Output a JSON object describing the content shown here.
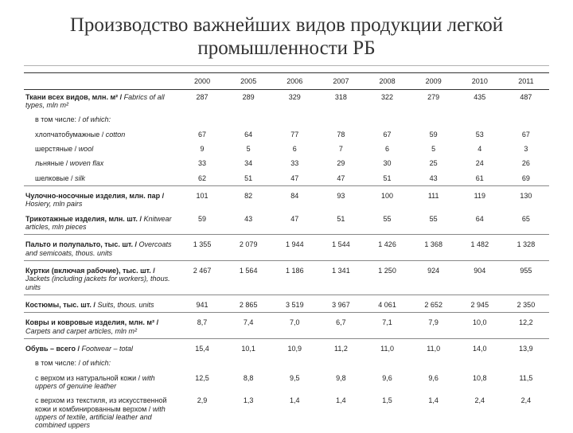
{
  "title": "Производство важнейших видов продукции легкой промышленности РБ",
  "years": [
    "2000",
    "2005",
    "2006",
    "2007",
    "2008",
    "2009",
    "2010",
    "2011"
  ],
  "rows": [
    {
      "kind": "section",
      "ru": "Ткани всех видов, млн. м²",
      "en": "Fabrics of all types, mln m²",
      "vals": [
        "287",
        "289",
        "329",
        "318",
        "322",
        "279",
        "435",
        "487"
      ]
    },
    {
      "kind": "sub-hdr",
      "ru": "в том числе:",
      "en": "of which:"
    },
    {
      "kind": "sub",
      "ru": "хлопчатобумажные",
      "en": "cotton",
      "vals": [
        "67",
        "64",
        "77",
        "78",
        "67",
        "59",
        "53",
        "67"
      ]
    },
    {
      "kind": "sub",
      "ru": "шерстяные",
      "en": "wool",
      "vals": [
        "9",
        "5",
        "6",
        "7",
        "6",
        "5",
        "4",
        "3"
      ]
    },
    {
      "kind": "sub",
      "ru": "льняные",
      "en": "woven flax",
      "vals": [
        "33",
        "34",
        "33",
        "29",
        "30",
        "25",
        "24",
        "26"
      ]
    },
    {
      "kind": "sub",
      "ru": "шелковые",
      "en": "silk",
      "vals": [
        "62",
        "51",
        "47",
        "47",
        "51",
        "43",
        "61",
        "69"
      ]
    },
    {
      "kind": "section",
      "divider": true,
      "ru": "Чулочно-носочные изделия, млн. пар",
      "en": "Hosiery, mln pairs",
      "vals": [
        "101",
        "82",
        "84",
        "93",
        "100",
        "111",
        "119",
        "130"
      ]
    },
    {
      "kind": "section",
      "ru": "Трикотажные изделия, млн. шт.",
      "en": "Knitwear articles, mln pieces",
      "vals": [
        "59",
        "43",
        "47",
        "51",
        "55",
        "55",
        "64",
        "65"
      ]
    },
    {
      "kind": "section",
      "divider": true,
      "ru": "Пальто и полупальто, тыс. шт.",
      "en": "Overcoats and semicoats, thous. units",
      "vals": [
        "1 355",
        "2 079",
        "1 944",
        "1 544",
        "1 426",
        "1 368",
        "1 482",
        "1 328"
      ]
    },
    {
      "kind": "section",
      "divider": true,
      "ru": "Куртки (включая рабочие), тыс. шт.",
      "en": "Jackets (including jackets for workers), thous. units",
      "vals": [
        "2 467",
        "1 564",
        "1 186",
        "1 341",
        "1 250",
        "924",
        "904",
        "955"
      ]
    },
    {
      "kind": "section",
      "divider": true,
      "ru": "Костюмы, тыс. шт.",
      "en": "Suits, thous. units",
      "vals": [
        "941",
        "2 865",
        "3 519",
        "3 967",
        "4 061",
        "2 652",
        "2 945",
        "2 350"
      ]
    },
    {
      "kind": "section",
      "divider": true,
      "ru": "Ковры и ковровые изделия, млн. м²",
      "en": "Carpets and carpet articles, mln m²",
      "vals": [
        "8,7",
        "7,4",
        "7,0",
        "6,7",
        "7,1",
        "7,9",
        "10,0",
        "12,2"
      ]
    },
    {
      "kind": "section",
      "divider": true,
      "ru": "Обувь – всего",
      "en": "Footwear – total",
      "vals": [
        "15,4",
        "10,1",
        "10,9",
        "11,2",
        "11,0",
        "11,0",
        "14,0",
        "13,9"
      ]
    },
    {
      "kind": "sub-hdr",
      "ru": "в том числе:",
      "en": "of which:"
    },
    {
      "kind": "sub",
      "ru": "с верхом из натуральной кожи",
      "en": "with uppers of genuine leather",
      "vals": [
        "12,5",
        "8,8",
        "9,5",
        "9,8",
        "9,6",
        "9,6",
        "10,8",
        "11,5"
      ]
    },
    {
      "kind": "sub",
      "ru": "с верхом из текстиля, из искусственной кожи и комбинированным верхом",
      "en": "with uppers of textile, artificial leather and combined uppers",
      "vals": [
        "2,9",
        "1,3",
        "1,4",
        "1,4",
        "1,5",
        "1,4",
        "2,4",
        "2,4"
      ]
    }
  ],
  "style": {
    "title_color": "#333333",
    "title_fontsize": 25,
    "table_fontsize": 9,
    "row_border_color": "#888888"
  }
}
